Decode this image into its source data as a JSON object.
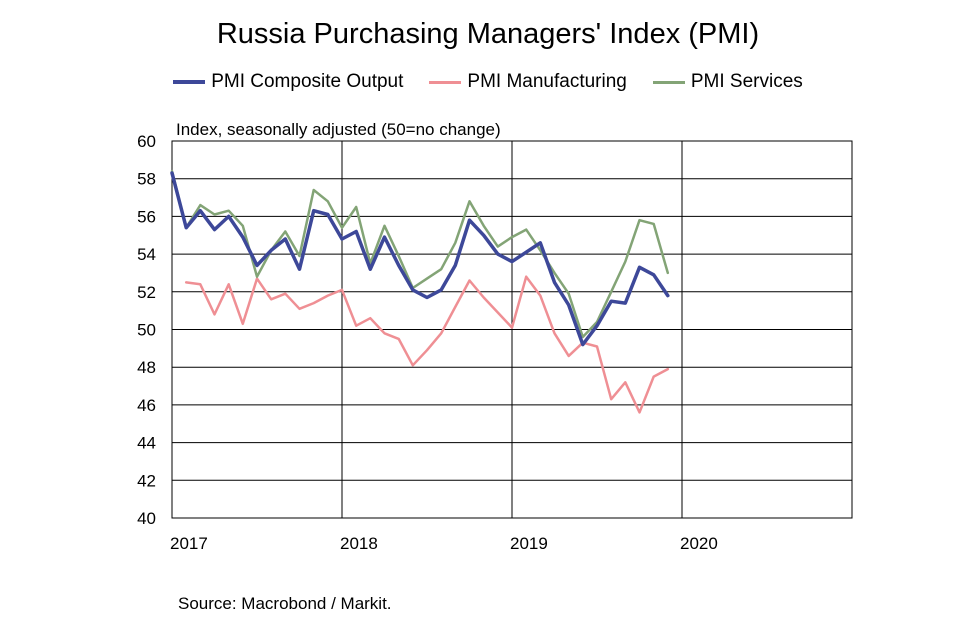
{
  "chart_data": {
    "type": "line",
    "title": "Russia Purchasing Managers' Index (PMI)",
    "subtitle": "Index, seasonally adjusted (50=no change)",
    "source": "Source: Macrobond / Markit.",
    "ylim": [
      40,
      60
    ],
    "yticks": [
      "60",
      "58",
      "56",
      "54",
      "52",
      "50",
      "48",
      "46",
      "44",
      "42",
      "40"
    ],
    "xlim": [
      2017,
      2021
    ],
    "xticks": [
      {
        "label": "2017",
        "value": 2017
      },
      {
        "label": "2018",
        "value": 2018
      },
      {
        "label": "2019",
        "value": 2019
      },
      {
        "label": "2020",
        "value": 2020
      }
    ],
    "grid": true,
    "legend_position": "top",
    "series": [
      {
        "name": "PMI Composite Output",
        "color": "#3d4899",
        "start": "2016-12",
        "values": [
          58.3,
          55.4,
          56.3,
          55.3,
          56.0,
          54.9,
          53.4,
          54.2,
          54.8,
          53.2,
          56.3,
          56.1,
          54.8,
          55.2,
          53.2,
          54.9,
          53.4,
          52.1,
          51.7,
          52.1,
          53.4,
          55.8,
          55.0,
          54.0,
          53.6,
          54.1,
          54.6,
          52.5,
          51.3,
          49.2,
          50.2,
          51.5,
          51.4,
          53.3,
          52.9,
          51.8
        ]
      },
      {
        "name": "PMI Manufacturing",
        "color": "#ef8f94",
        "start": "2017-01",
        "values": [
          52.5,
          52.4,
          50.8,
          52.4,
          50.3,
          52.7,
          51.6,
          51.9,
          51.1,
          51.4,
          51.8,
          52.1,
          50.2,
          50.6,
          49.8,
          49.5,
          48.1,
          48.9,
          49.8,
          51.2,
          52.6,
          51.7,
          50.9,
          50.1,
          52.8,
          51.8,
          49.8,
          48.6,
          49.3,
          49.1,
          46.3,
          47.2,
          45.6,
          47.5,
          47.9
        ]
      },
      {
        "name": "PMI Services",
        "color": "#83a476",
        "start": "2016-12",
        "values": [
          58.4,
          55.4,
          56.6,
          56.1,
          56.3,
          55.5,
          52.8,
          54.2,
          55.2,
          53.9,
          57.4,
          56.8,
          55.4,
          56.5,
          53.5,
          55.5,
          53.9,
          52.2,
          52.7,
          53.2,
          54.6,
          56.8,
          55.5,
          54.4,
          54.9,
          55.3,
          54.2,
          53.0,
          51.9,
          49.6,
          50.4,
          52.0,
          53.6,
          55.8,
          55.6,
          53.0
        ]
      }
    ]
  }
}
